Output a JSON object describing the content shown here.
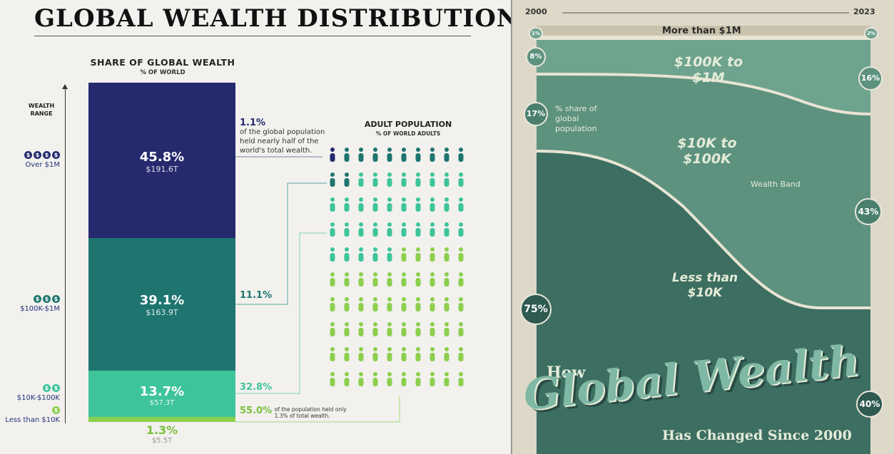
{
  "left": {
    "title": "GLOBAL WEALTH DISTRIBUTION",
    "share_heading": "SHARE OF GLOBAL WEALTH",
    "share_sub": "% OF WORLD",
    "wealth_range_label": "WEALTH RANGE",
    "ranges": [
      {
        "coins": 4,
        "label": "Over $1M"
      },
      {
        "coins": 3,
        "label": "$100K-$1M"
      },
      {
        "coins": 2,
        "label": "$10K-$100K"
      },
      {
        "coins": 1,
        "label": "Less than $10K"
      }
    ],
    "segments": [
      {
        "pct": "45.8%",
        "dollars": "$191.6T",
        "value": 45.8,
        "color": "#252a6e"
      },
      {
        "pct": "39.1%",
        "dollars": "$163.9T",
        "value": 39.1,
        "color": "#1e7570"
      },
      {
        "pct": "13.7%",
        "dollars": "$57.3T",
        "value": 13.7,
        "color": "#3ec49a"
      },
      {
        "pct": "1.3%",
        "dollars": "$5.5T",
        "value": 1.3,
        "color": "#8ccf4d"
      }
    ],
    "annotations": {
      "a1_pct": "1.1%",
      "a1_text": "of the global population held nearly half of the world's total wealth.",
      "a2_pct": "11.1%",
      "a3_pct": "32.8%",
      "a4_pct": "55.0%",
      "a4_text": "of the population held only 1.3% of total wealth."
    },
    "pop_heading": "ADULT POPULATION",
    "pop_sub": "% OF WORLD ADULTS"
  },
  "right": {
    "year_start": "2000",
    "year_end": "2023",
    "band_top": "More than $1M",
    "band_2": "$100K to $1M",
    "band_3": "$10K to $100K",
    "band_4": "Less than $10K",
    "legend_share": "% share of global population",
    "legend_band": "Wealth Band",
    "title_how": "How",
    "title_main": "Global Wealth",
    "title_sub": "Has Changed Since 2000",
    "circles": {
      "c1_2000": "1%",
      "c1_2023": "2%",
      "c2_2000": "8%",
      "c2_2023": "16%",
      "c3_2000": "17%",
      "c3_2023": "43%",
      "c4_2000": "75%",
      "c4_2023": "40%"
    }
  },
  "chart_data": [
    {
      "type": "bar",
      "title": "SHARE OF GLOBAL WEALTH",
      "categories": [
        "Over $1M",
        "$100K-$1M",
        "$10K-$100K",
        "Less than $10K"
      ],
      "series": [
        {
          "name": "Share of global wealth (%)",
          "values": [
            45.8,
            39.1,
            13.7,
            1.3
          ]
        },
        {
          "name": "Adult population (%)",
          "values": [
            1.1,
            11.1,
            32.8,
            55.0
          ]
        }
      ],
      "wealth_trillions": [
        191.6,
        163.9,
        57.3,
        5.5
      ]
    },
    {
      "type": "area",
      "title": "How Global Wealth Has Changed Since 2000",
      "x": [
        2000,
        2023
      ],
      "series": [
        {
          "name": "More than $1M",
          "values": [
            1,
            2
          ]
        },
        {
          "name": "$100K to $1M",
          "values": [
            8,
            16
          ]
        },
        {
          "name": "$10K to $100K",
          "values": [
            17,
            43
          ]
        },
        {
          "name": "Less than $10K",
          "values": [
            75,
            40
          ]
        }
      ]
    }
  ]
}
